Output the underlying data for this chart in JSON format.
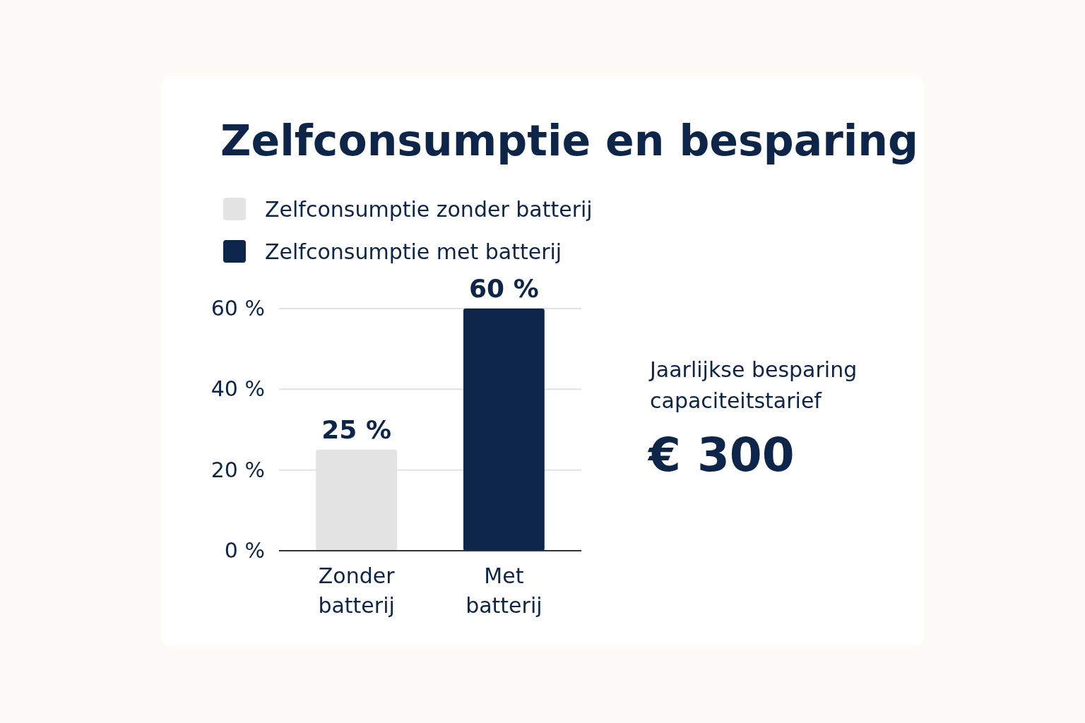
{
  "chart_data": {
    "type": "bar",
    "title": "Zelfconsumptie en besparing",
    "categories": [
      "Zonder batterij",
      "Met batterij"
    ],
    "series": [
      {
        "name": "Zelfconsumptie zonder batterij",
        "color": "#e3e3e3",
        "values": [
          25,
          null
        ],
        "value_labels": [
          "25 %",
          null
        ]
      },
      {
        "name": "Zelfconsumptie met batterij",
        "color": "#0d2548",
        "values": [
          null,
          60
        ],
        "value_labels": [
          null,
          "60 %"
        ]
      }
    ],
    "ylim": [
      0,
      60
    ],
    "yticks": [
      {
        "value": 0,
        "label": "0 %"
      },
      {
        "value": 20,
        "label": "20 %"
      },
      {
        "value": 40,
        "label": "40 %"
      },
      {
        "value": 60,
        "label": "60 %"
      }
    ],
    "grid": "y",
    "legend": "top left",
    "annotations": [
      "Jaarlijkse besparing capaciteitstarief",
      "€ 300"
    ]
  }
}
